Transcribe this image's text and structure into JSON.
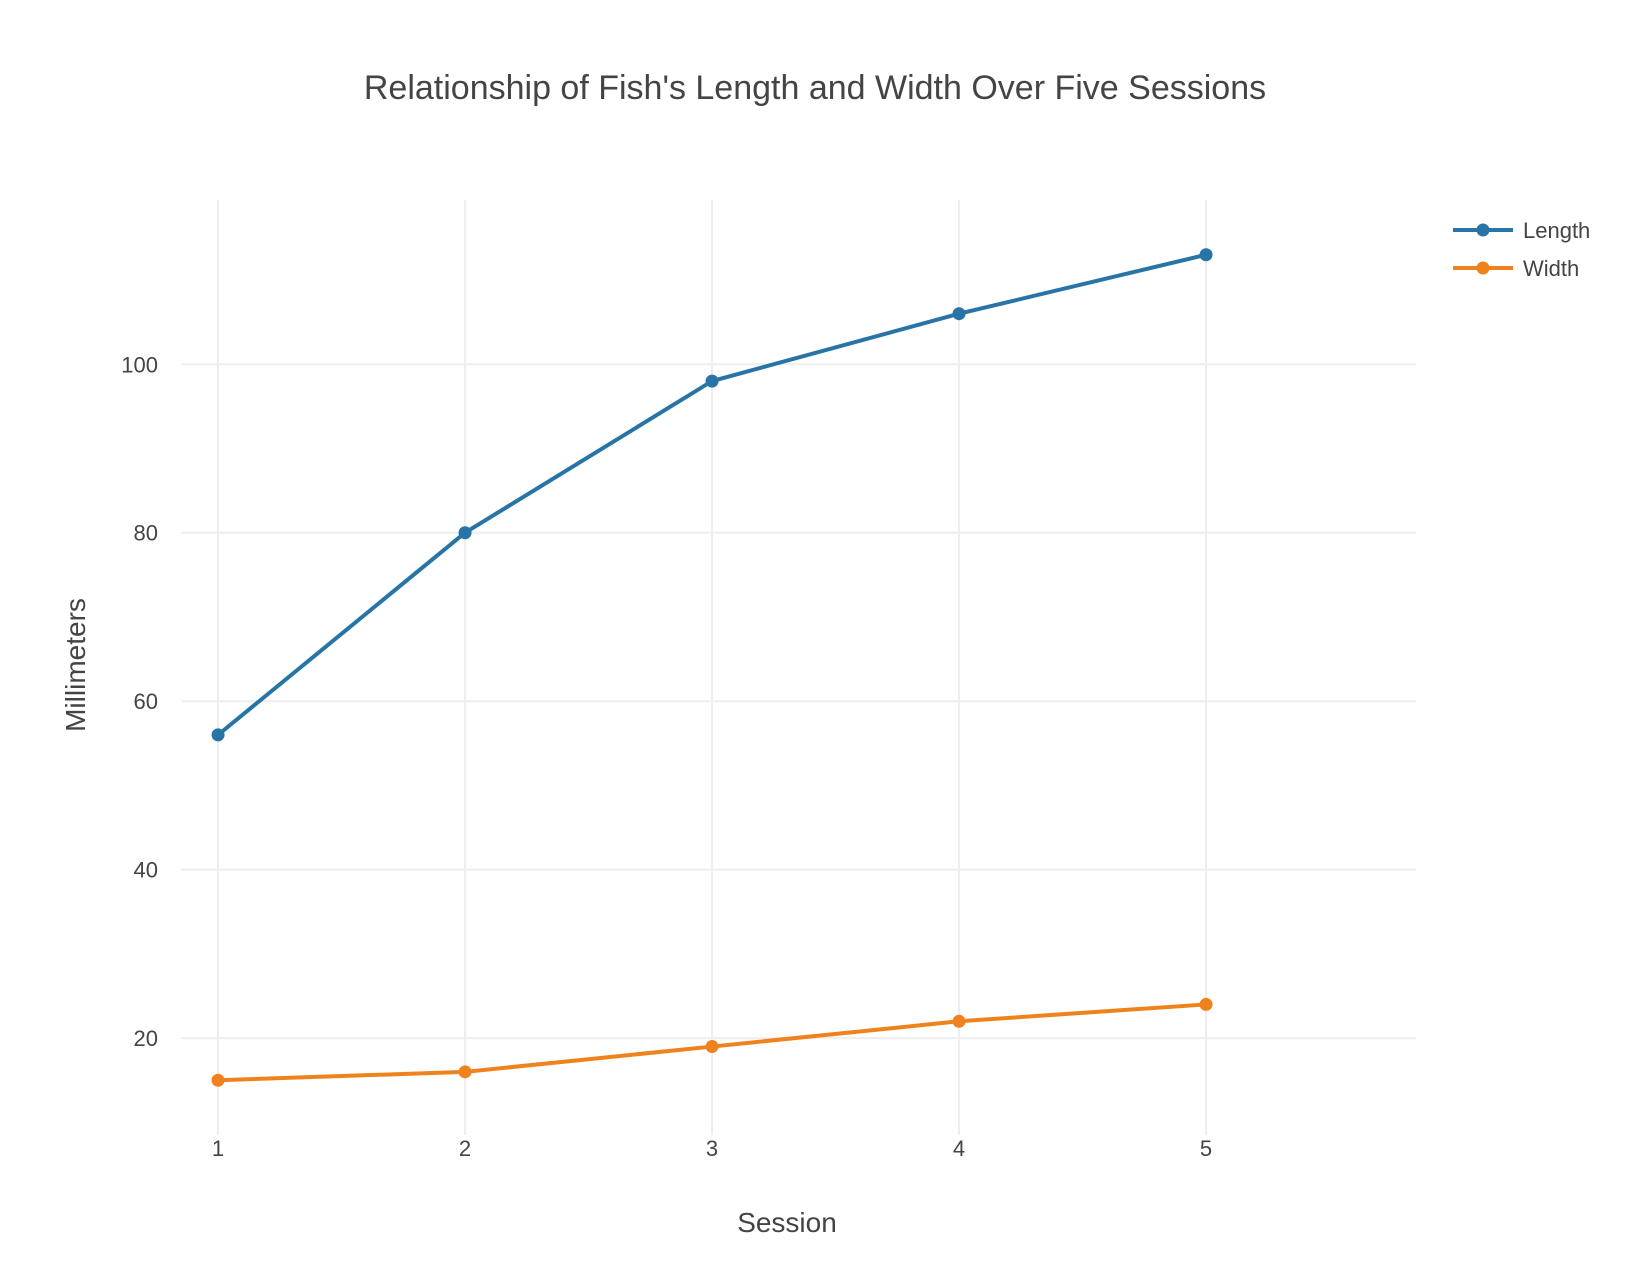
{
  "chart_data": {
    "type": "line",
    "title": "Relationship of Fish's Length and Width Over Five Sessions",
    "xlabel": "Session",
    "ylabel": "Millimeters",
    "x": [
      1,
      2,
      3,
      4,
      5
    ],
    "x_ticks": [
      "1",
      "2",
      "3",
      "4",
      "5"
    ],
    "y_ticks": [
      "20",
      "40",
      "60",
      "80",
      "100"
    ],
    "xlim": [
      0.85,
      5.85
    ],
    "ylim": [
      8.5,
      119.5
    ],
    "grid": true,
    "legend_position": "top-right",
    "series": [
      {
        "name": "Length",
        "color": "#2874a6",
        "values": [
          56,
          80,
          98,
          106,
          113
        ]
      },
      {
        "name": "Width",
        "color": "#f0821e",
        "values": [
          15,
          16,
          19,
          22,
          24
        ]
      }
    ]
  }
}
